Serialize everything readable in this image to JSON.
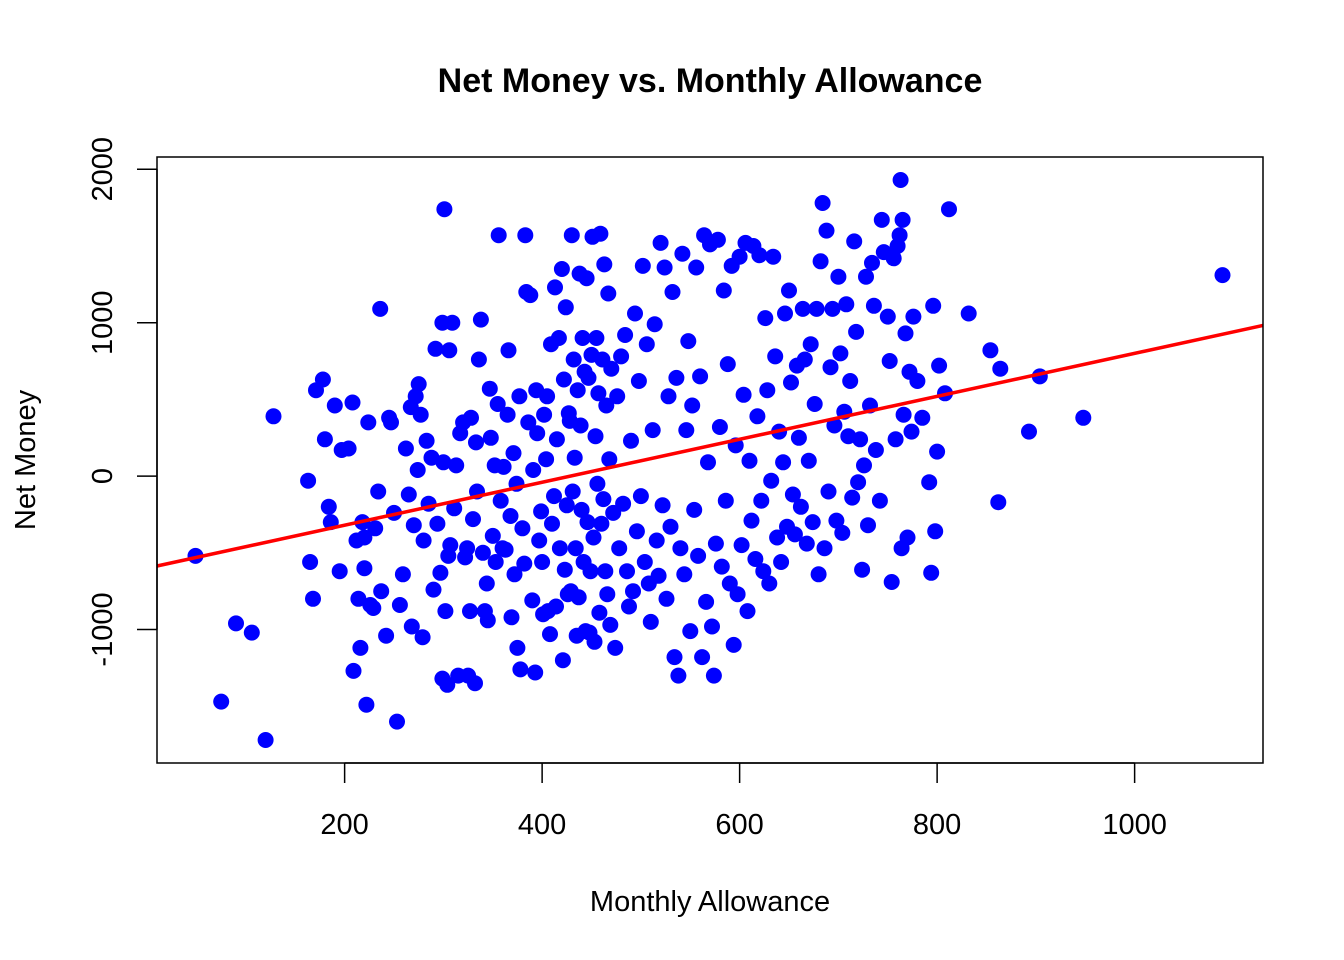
{
  "chart_data": {
    "type": "scatter",
    "title": "Net Money vs. Monthly Allowance",
    "xlabel": "Monthly Allowance",
    "ylabel": "Net Money",
    "xlim": [
      10,
      1130
    ],
    "ylim": [
      -1870,
      2080
    ],
    "x_ticks": [
      200,
      400,
      600,
      800,
      1000
    ],
    "x_tick_labels": [
      "200",
      "400",
      "600",
      "800",
      "1000"
    ],
    "y_ticks": [
      -1000,
      0,
      1000,
      2000
    ],
    "y_tick_labels": [
      "-1000",
      "0",
      "1000",
      "2000"
    ],
    "grid": false,
    "legend": "none",
    "point_color": "#0000ff",
    "line_color": "#ff0000",
    "regression_line": {
      "intercept": -600,
      "slope": 1.4
    },
    "points": [
      [
        49,
        -520
      ],
      [
        75,
        -1470
      ],
      [
        90,
        -960
      ],
      [
        106,
        -1020
      ],
      [
        120,
        -1720
      ],
      [
        128,
        390
      ],
      [
        163,
        -30
      ],
      [
        165,
        -560
      ],
      [
        168,
        -800
      ],
      [
        171,
        560
      ],
      [
        178,
        630
      ],
      [
        180,
        240
      ],
      [
        184,
        -200
      ],
      [
        186,
        -300
      ],
      [
        190,
        460
      ],
      [
        195,
        -620
      ],
      [
        197,
        170
      ],
      [
        204,
        180
      ],
      [
        208,
        480
      ],
      [
        209,
        -1270
      ],
      [
        212,
        -420
      ],
      [
        214,
        -800
      ],
      [
        216,
        -1120
      ],
      [
        218,
        -300
      ],
      [
        220,
        -400
      ],
      [
        220,
        -600
      ],
      [
        222,
        -1490
      ],
      [
        224,
        350
      ],
      [
        226,
        -840
      ],
      [
        229,
        -860
      ],
      [
        231,
        -340
      ],
      [
        234,
        -100
      ],
      [
        236,
        1090
      ],
      [
        237,
        -750
      ],
      [
        242,
        -1040
      ],
      [
        245,
        380
      ],
      [
        247,
        350
      ],
      [
        250,
        -240
      ],
      [
        253,
        -1600
      ],
      [
        256,
        -840
      ],
      [
        259,
        -640
      ],
      [
        262,
        180
      ],
      [
        265,
        -120
      ],
      [
        267,
        450
      ],
      [
        268,
        -980
      ],
      [
        270,
        -320
      ],
      [
        272,
        520
      ],
      [
        274,
        40
      ],
      [
        275,
        600
      ],
      [
        277,
        400
      ],
      [
        279,
        -1050
      ],
      [
        280,
        -420
      ],
      [
        283,
        230
      ],
      [
        285,
        -180
      ],
      [
        288,
        120
      ],
      [
        290,
        -740
      ],
      [
        292,
        830
      ],
      [
        294,
        -310
      ],
      [
        297,
        -630
      ],
      [
        299,
        1000
      ],
      [
        299,
        -1320
      ],
      [
        300,
        90
      ],
      [
        301,
        1740
      ],
      [
        302,
        -880
      ],
      [
        304,
        -1360
      ],
      [
        305,
        -520
      ],
      [
        306,
        820
      ],
      [
        307,
        -450
      ],
      [
        309,
        1000
      ],
      [
        311,
        -210
      ],
      [
        313,
        70
      ],
      [
        315,
        -1300
      ],
      [
        317,
        280
      ],
      [
        320,
        350
      ],
      [
        322,
        -530
      ],
      [
        324,
        -470
      ],
      [
        325,
        -1300
      ],
      [
        327,
        -880
      ],
      [
        328,
        380
      ],
      [
        330,
        -280
      ],
      [
        332,
        -1350
      ],
      [
        333,
        220
      ],
      [
        334,
        -100
      ],
      [
        336,
        760
      ],
      [
        338,
        1020
      ],
      [
        340,
        -500
      ],
      [
        342,
        -880
      ],
      [
        344,
        -700
      ],
      [
        345,
        -940
      ],
      [
        347,
        570
      ],
      [
        348,
        250
      ],
      [
        350,
        -390
      ],
      [
        352,
        70
      ],
      [
        353,
        -560
      ],
      [
        355,
        470
      ],
      [
        356,
        1570
      ],
      [
        358,
        -160
      ],
      [
        360,
        -470
      ],
      [
        361,
        60
      ],
      [
        363,
        -480
      ],
      [
        365,
        400
      ],
      [
        366,
        820
      ],
      [
        368,
        -260
      ],
      [
        369,
        -920
      ],
      [
        371,
        150
      ],
      [
        372,
        -640
      ],
      [
        374,
        -50
      ],
      [
        375,
        -1120
      ],
      [
        377,
        520
      ],
      [
        378,
        -1260
      ],
      [
        380,
        -340
      ],
      [
        382,
        -570
      ],
      [
        383,
        1570
      ],
      [
        384,
        1200
      ],
      [
        386,
        350
      ],
      [
        388,
        1180
      ],
      [
        390,
        -810
      ],
      [
        391,
        40
      ],
      [
        393,
        -1280
      ],
      [
        394,
        560
      ],
      [
        395,
        280
      ],
      [
        397,
        -420
      ],
      [
        399,
        -230
      ],
      [
        400,
        -560
      ],
      [
        401,
        -900
      ],
      [
        402,
        400
      ],
      [
        404,
        110
      ],
      [
        405,
        520
      ],
      [
        406,
        -880
      ],
      [
        408,
        -1030
      ],
      [
        409,
        860
      ],
      [
        410,
        -310
      ],
      [
        412,
        -130
      ],
      [
        413,
        1230
      ],
      [
        414,
        -850
      ],
      [
        415,
        240
      ],
      [
        417,
        900
      ],
      [
        418,
        -470
      ],
      [
        420,
        1350
      ],
      [
        421,
        -1200
      ],
      [
        422,
        630
      ],
      [
        423,
        -610
      ],
      [
        424,
        1100
      ],
      [
        425,
        -190
      ],
      [
        426,
        -770
      ],
      [
        427,
        410
      ],
      [
        428,
        360
      ],
      [
        429,
        -750
      ],
      [
        430,
        1570
      ],
      [
        431,
        -100
      ],
      [
        432,
        760
      ],
      [
        433,
        120
      ],
      [
        434,
        -470
      ],
      [
        435,
        -1040
      ],
      [
        436,
        560
      ],
      [
        437,
        -790
      ],
      [
        438,
        1320
      ],
      [
        439,
        330
      ],
      [
        440,
        -220
      ],
      [
        441,
        900
      ],
      [
        442,
        -560
      ],
      [
        443,
        680
      ],
      [
        444,
        -1010
      ],
      [
        445,
        1290
      ],
      [
        446,
        -300
      ],
      [
        447,
        640
      ],
      [
        448,
        -1020
      ],
      [
        449,
        -620
      ],
      [
        450,
        790
      ],
      [
        451,
        1560
      ],
      [
        452,
        -400
      ],
      [
        453,
        -1080
      ],
      [
        454,
        260
      ],
      [
        455,
        900
      ],
      [
        456,
        -50
      ],
      [
        457,
        540
      ],
      [
        458,
        -890
      ],
      [
        459,
        1580
      ],
      [
        460,
        -310
      ],
      [
        461,
        760
      ],
      [
        462,
        -150
      ],
      [
        463,
        1380
      ],
      [
        464,
        -620
      ],
      [
        465,
        460
      ],
      [
        466,
        -770
      ],
      [
        467,
        1190
      ],
      [
        468,
        110
      ],
      [
        469,
        -970
      ],
      [
        470,
        700
      ],
      [
        472,
        -240
      ],
      [
        474,
        -1120
      ],
      [
        476,
        520
      ],
      [
        478,
        -470
      ],
      [
        480,
        780
      ],
      [
        482,
        -180
      ],
      [
        484,
        920
      ],
      [
        486,
        -620
      ],
      [
        488,
        -850
      ],
      [
        490,
        230
      ],
      [
        492,
        -750
      ],
      [
        494,
        1060
      ],
      [
        496,
        -360
      ],
      [
        498,
        620
      ],
      [
        500,
        -130
      ],
      [
        502,
        1370
      ],
      [
        504,
        -560
      ],
      [
        506,
        860
      ],
      [
        508,
        -700
      ],
      [
        510,
        -950
      ],
      [
        512,
        300
      ],
      [
        514,
        990
      ],
      [
        516,
        -420
      ],
      [
        518,
        -650
      ],
      [
        520,
        1520
      ],
      [
        522,
        -190
      ],
      [
        524,
        1360
      ],
      [
        526,
        -800
      ],
      [
        528,
        520
      ],
      [
        530,
        -330
      ],
      [
        532,
        1200
      ],
      [
        534,
        -1180
      ],
      [
        536,
        640
      ],
      [
        538,
        -1300
      ],
      [
        540,
        -470
      ],
      [
        542,
        1450
      ],
      [
        544,
        -640
      ],
      [
        546,
        300
      ],
      [
        548,
        880
      ],
      [
        550,
        -1010
      ],
      [
        552,
        460
      ],
      [
        554,
        -220
      ],
      [
        556,
        1360
      ],
      [
        558,
        -520
      ],
      [
        560,
        650
      ],
      [
        562,
        -1180
      ],
      [
        564,
        1570
      ],
      [
        566,
        -820
      ],
      [
        568,
        90
      ],
      [
        570,
        1510
      ],
      [
        572,
        -980
      ],
      [
        574,
        -1300
      ],
      [
        576,
        -440
      ],
      [
        578,
        1540
      ],
      [
        580,
        320
      ],
      [
        582,
        -590
      ],
      [
        584,
        1210
      ],
      [
        586,
        -160
      ],
      [
        588,
        730
      ],
      [
        590,
        -700
      ],
      [
        592,
        1370
      ],
      [
        594,
        -1100
      ],
      [
        596,
        200
      ],
      [
        598,
        -770
      ],
      [
        600,
        1430
      ],
      [
        602,
        -450
      ],
      [
        604,
        530
      ],
      [
        606,
        1520
      ],
      [
        608,
        -880
      ],
      [
        610,
        100
      ],
      [
        612,
        -290
      ],
      [
        614,
        1500
      ],
      [
        616,
        -540
      ],
      [
        618,
        390
      ],
      [
        620,
        1440
      ],
      [
        622,
        -160
      ],
      [
        624,
        -620
      ],
      [
        626,
        1030
      ],
      [
        628,
        560
      ],
      [
        630,
        -700
      ],
      [
        632,
        -30
      ],
      [
        634,
        1430
      ],
      [
        636,
        780
      ],
      [
        638,
        -400
      ],
      [
        640,
        290
      ],
      [
        642,
        -560
      ],
      [
        644,
        90
      ],
      [
        646,
        1060
      ],
      [
        648,
        -330
      ],
      [
        650,
        1210
      ],
      [
        652,
        610
      ],
      [
        654,
        -120
      ],
      [
        656,
        -380
      ],
      [
        658,
        720
      ],
      [
        660,
        250
      ],
      [
        662,
        -200
      ],
      [
        664,
        1090
      ],
      [
        666,
        760
      ],
      [
        668,
        -440
      ],
      [
        670,
        100
      ],
      [
        672,
        860
      ],
      [
        674,
        -300
      ],
      [
        676,
        470
      ],
      [
        678,
        1090
      ],
      [
        680,
        -640
      ],
      [
        682,
        1400
      ],
      [
        684,
        1780
      ],
      [
        686,
        -470
      ],
      [
        688,
        1600
      ],
      [
        690,
        -100
      ],
      [
        692,
        710
      ],
      [
        694,
        1090
      ],
      [
        696,
        330
      ],
      [
        698,
        -290
      ],
      [
        700,
        1300
      ],
      [
        702,
        800
      ],
      [
        704,
        -370
      ],
      [
        706,
        420
      ],
      [
        708,
        1120
      ],
      [
        710,
        260
      ],
      [
        712,
        620
      ],
      [
        714,
        -140
      ],
      [
        716,
        1530
      ],
      [
        718,
        940
      ],
      [
        720,
        -40
      ],
      [
        722,
        240
      ],
      [
        724,
        -610
      ],
      [
        726,
        70
      ],
      [
        728,
        1300
      ],
      [
        730,
        -320
      ],
      [
        732,
        460
      ],
      [
        734,
        1390
      ],
      [
        736,
        1110
      ],
      [
        738,
        170
      ],
      [
        742,
        -160
      ],
      [
        744,
        1670
      ],
      [
        746,
        1460
      ],
      [
        750,
        1040
      ],
      [
        752,
        750
      ],
      [
        754,
        -690
      ],
      [
        756,
        1420
      ],
      [
        758,
        240
      ],
      [
        760,
        1500
      ],
      [
        762,
        1570
      ],
      [
        763,
        1930
      ],
      [
        764,
        -470
      ],
      [
        765,
        1670
      ],
      [
        766,
        400
      ],
      [
        768,
        930
      ],
      [
        770,
        -400
      ],
      [
        772,
        680
      ],
      [
        774,
        290
      ],
      [
        776,
        1040
      ],
      [
        780,
        620
      ],
      [
        785,
        380
      ],
      [
        792,
        -40
      ],
      [
        794,
        -630
      ],
      [
        796,
        1110
      ],
      [
        798,
        -360
      ],
      [
        800,
        160
      ],
      [
        802,
        720
      ],
      [
        808,
        540
      ],
      [
        812,
        1740
      ],
      [
        832,
        1060
      ],
      [
        854,
        820
      ],
      [
        862,
        -170
      ],
      [
        864,
        700
      ],
      [
        893,
        290
      ],
      [
        904,
        650
      ],
      [
        948,
        380
      ],
      [
        1089,
        1310
      ]
    ]
  }
}
